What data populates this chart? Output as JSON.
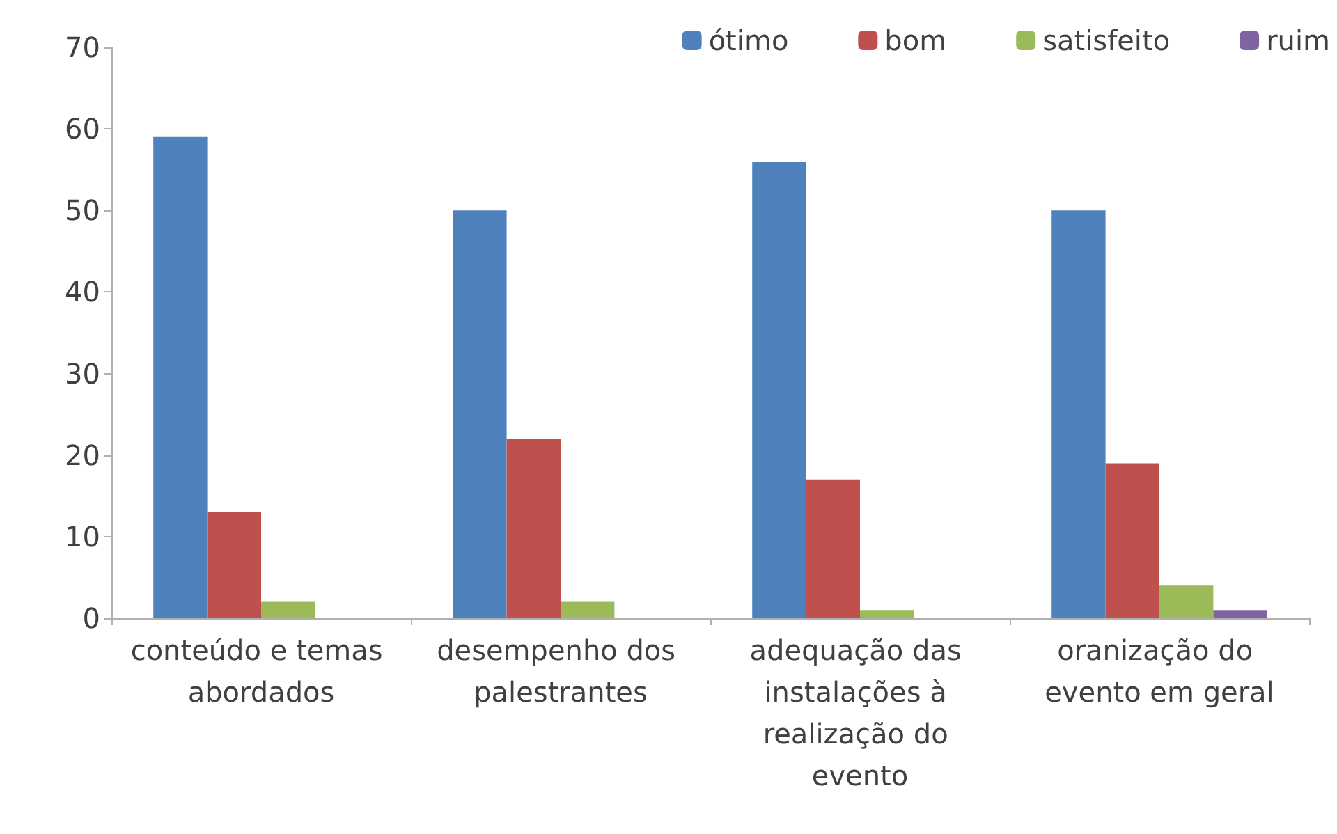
{
  "chart_data": {
    "type": "bar",
    "categories": [
      "conteúdo e temas abordados",
      "desempenho dos palestrantes",
      "adequação das instalações à realização do evento",
      "oranização do evento em geral"
    ],
    "series": [
      {
        "name": "ótimo",
        "color": "#4f81bd",
        "values": [
          59,
          50,
          56,
          50
        ]
      },
      {
        "name": "bom",
        "color": "#c0504d",
        "values": [
          13,
          22,
          17,
          19
        ]
      },
      {
        "name": "satisfeito",
        "color": "#9bbb59",
        "values": [
          2,
          2,
          1,
          4
        ]
      },
      {
        "name": "ruim",
        "color": "#8064a2",
        "values": [
          0,
          0,
          0,
          1
        ]
      }
    ],
    "ylim": [
      0,
      70
    ],
    "yticks": [
      0,
      10,
      20,
      30,
      40,
      50,
      60,
      70
    ],
    "grid": false,
    "legend": "top right"
  }
}
